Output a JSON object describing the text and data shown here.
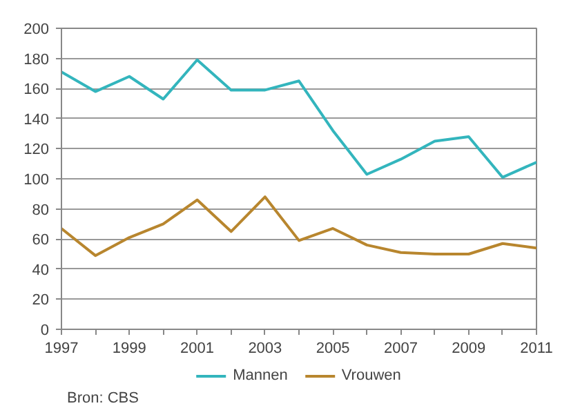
{
  "chart_data": {
    "type": "line",
    "x": [
      1997,
      1998,
      1999,
      2000,
      2001,
      2002,
      2003,
      2004,
      2005,
      2006,
      2007,
      2008,
      2009,
      2010,
      2011
    ],
    "series": [
      {
        "name": "Mannen",
        "color": "#33b5bd",
        "values": [
          171,
          158,
          168,
          153,
          179,
          159,
          159,
          165,
          132,
          103,
          113,
          125,
          128,
          101,
          111
        ]
      },
      {
        "name": "Vrouwen",
        "color": "#b8862e",
        "values": [
          67,
          49,
          61,
          70,
          86,
          65,
          88,
          59,
          67,
          56,
          51,
          50,
          50,
          57,
          54
        ]
      }
    ],
    "xlim": [
      1997,
      2011
    ],
    "xticks": [
      1997,
      {
        "value": 1998,
        "label": null
      },
      1999,
      {
        "value": 2000,
        "label": null
      },
      2001,
      {
        "value": 2002,
        "label": null
      },
      2003,
      {
        "value": 2004,
        "label": null
      },
      2005,
      {
        "value": 2006,
        "label": null
      },
      2007,
      {
        "value": 2008,
        "label": null
      },
      2009,
      {
        "value": 2010,
        "label": null
      },
      2011
    ],
    "ylim": [
      0,
      200
    ],
    "yticks": [
      0,
      20,
      40,
      60,
      80,
      100,
      120,
      140,
      160,
      180,
      200
    ],
    "grid": "y",
    "legend": "bottom",
    "marker": "none",
    "line_style": "solid",
    "annotations": [
      "Bron: CBS"
    ]
  }
}
